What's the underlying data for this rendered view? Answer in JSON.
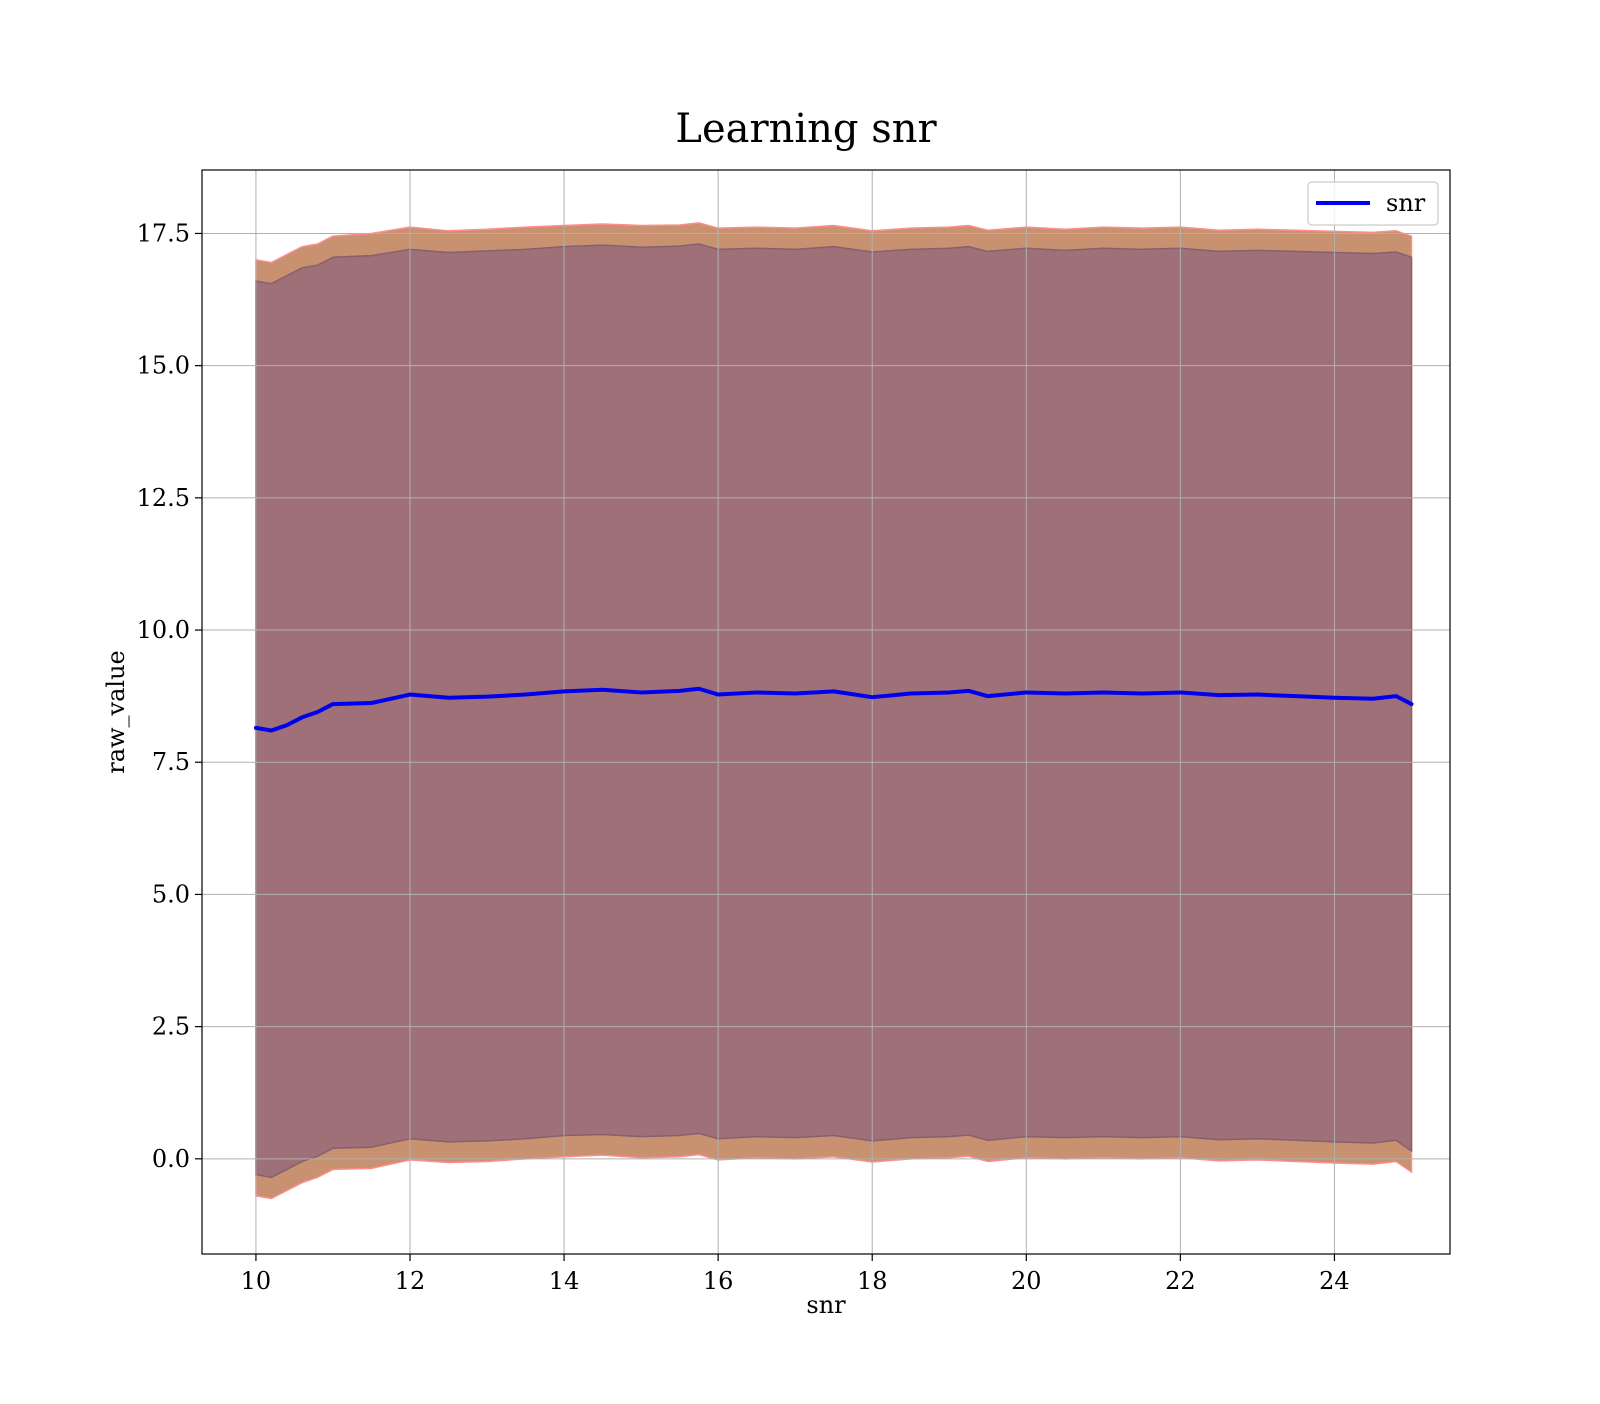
{
  "chart_data": {
    "type": "line",
    "title": "Learning snr",
    "xlabel": "snr",
    "ylabel": "raw_value",
    "xlim": [
      9.3,
      25.5
    ],
    "ylim": [
      -1.8,
      18.7
    ],
    "x_ticks": [
      10,
      12,
      14,
      16,
      18,
      20,
      22,
      24
    ],
    "x_tick_labels": [
      "10",
      "12",
      "14",
      "16",
      "18",
      "20",
      "22",
      "24"
    ],
    "y_ticks": [
      0,
      2.5,
      5,
      7.5,
      10,
      12.5,
      15,
      17.5
    ],
    "y_tick_labels": [
      "0.0",
      "2.5",
      "5.0",
      "7.5",
      "10.0",
      "12.5",
      "15.0",
      "17.5"
    ],
    "grid": true,
    "legend": {
      "position": "top-right"
    },
    "x": [
      10.0,
      10.2,
      10.4,
      10.6,
      10.8,
      11.0,
      11.5,
      12.0,
      12.5,
      13.0,
      13.5,
      14.0,
      14.5,
      15.0,
      15.5,
      15.75,
      16.0,
      16.5,
      17.0,
      17.5,
      18.0,
      18.5,
      19.0,
      19.25,
      19.5,
      20.0,
      20.5,
      21.0,
      21.5,
      22.0,
      22.5,
      23.0,
      23.5,
      24.0,
      24.5,
      24.8,
      25.0
    ],
    "series": [
      {
        "name": "snr",
        "color": "#0000ee",
        "values": [
          8.15,
          8.1,
          8.2,
          8.35,
          8.45,
          8.6,
          8.62,
          8.78,
          8.72,
          8.74,
          8.78,
          8.84,
          8.87,
          8.82,
          8.85,
          8.89,
          8.78,
          8.82,
          8.8,
          8.84,
          8.73,
          8.8,
          8.82,
          8.85,
          8.75,
          8.82,
          8.8,
          8.82,
          8.8,
          8.82,
          8.77,
          8.78,
          8.75,
          8.72,
          8.7,
          8.75,
          8.6
        ]
      }
    ],
    "bands": [
      {
        "role": "outer",
        "fill": "#c8916f",
        "edge": "#ff8c8c",
        "upper": [
          17.0,
          16.95,
          17.1,
          17.25,
          17.3,
          17.45,
          17.5,
          17.62,
          17.55,
          17.58,
          17.62,
          17.65,
          17.68,
          17.65,
          17.66,
          17.7,
          17.6,
          17.62,
          17.6,
          17.65,
          17.55,
          17.6,
          17.62,
          17.65,
          17.56,
          17.62,
          17.58,
          17.62,
          17.6,
          17.62,
          17.56,
          17.58,
          17.56,
          17.54,
          17.52,
          17.55,
          17.45
        ],
        "lower": [
          -0.7,
          -0.75,
          -0.6,
          -0.45,
          -0.35,
          -0.2,
          -0.18,
          -0.02,
          -0.07,
          -0.05,
          0.0,
          0.04,
          0.07,
          0.02,
          0.04,
          0.08,
          -0.02,
          0.02,
          0.0,
          0.04,
          -0.06,
          0.0,
          0.02,
          0.05,
          -0.05,
          0.02,
          0.0,
          0.02,
          0.0,
          0.02,
          -0.04,
          -0.02,
          -0.05,
          -0.08,
          -0.1,
          -0.05,
          -0.25
        ]
      },
      {
        "role": "inner",
        "fill": "#a07078",
        "edge": "#86606e",
        "upper": [
          16.6,
          16.55,
          16.7,
          16.85,
          16.9,
          17.05,
          17.08,
          17.2,
          17.14,
          17.17,
          17.2,
          17.25,
          17.28,
          17.24,
          17.26,
          17.3,
          17.2,
          17.22,
          17.2,
          17.25,
          17.15,
          17.2,
          17.22,
          17.25,
          17.16,
          17.22,
          17.18,
          17.22,
          17.2,
          17.22,
          17.16,
          17.18,
          17.16,
          17.14,
          17.12,
          17.15,
          17.05
        ],
        "lower": [
          -0.3,
          -0.35,
          -0.2,
          -0.05,
          0.05,
          0.2,
          0.22,
          0.38,
          0.32,
          0.34,
          0.38,
          0.44,
          0.46,
          0.42,
          0.44,
          0.48,
          0.38,
          0.42,
          0.4,
          0.44,
          0.34,
          0.4,
          0.42,
          0.45,
          0.35,
          0.42,
          0.4,
          0.42,
          0.4,
          0.42,
          0.36,
          0.38,
          0.35,
          0.32,
          0.3,
          0.35,
          0.15
        ]
      }
    ]
  }
}
